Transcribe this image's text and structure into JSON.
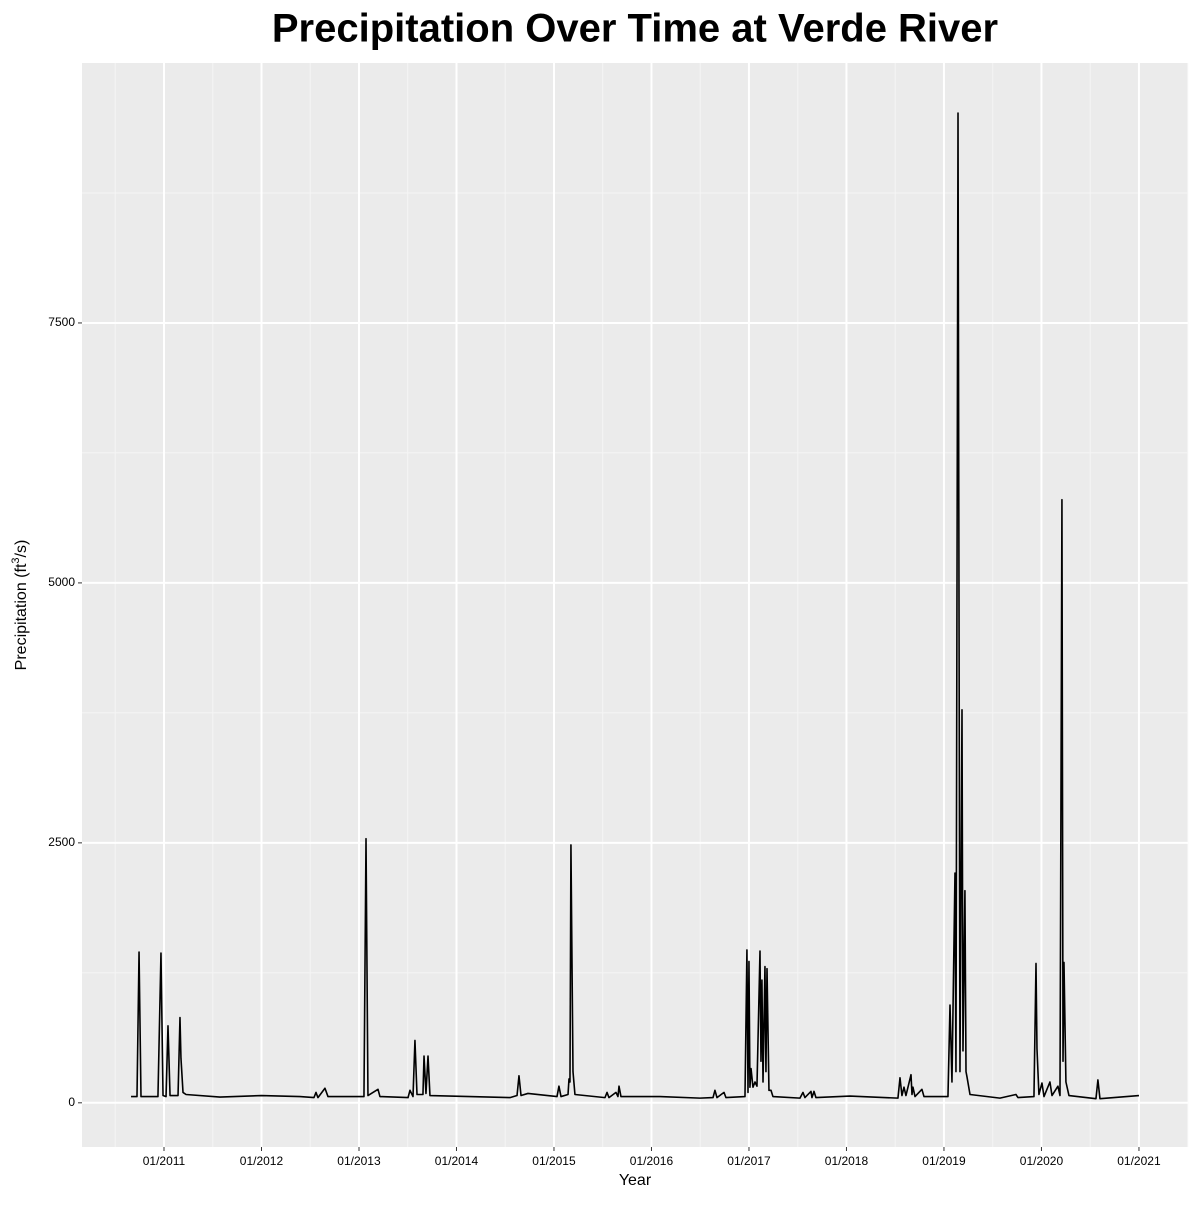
{
  "chart_data": {
    "type": "line",
    "title": "Precipitation Over Time at Verde River",
    "x_label": "Year",
    "y_label_parts": [
      "Precipitation (ft",
      "3",
      "/s)"
    ],
    "color": "#000000",
    "grid": true,
    "xlim": [
      2010.159,
      2021.503
    ],
    "ylim": [
      -425,
      10000
    ],
    "xticks": [
      {
        "value": 2011,
        "label": "01/2011"
      },
      {
        "value": 2012,
        "label": "01/2012"
      },
      {
        "value": 2013,
        "label": "01/2013"
      },
      {
        "value": 2014,
        "label": "01/2014"
      },
      {
        "value": 2015,
        "label": "01/2015"
      },
      {
        "value": 2016,
        "label": "01/2016"
      },
      {
        "value": 2017,
        "label": "01/2017"
      },
      {
        "value": 2018,
        "label": "01/2018"
      },
      {
        "value": 2019,
        "label": "01/2019"
      },
      {
        "value": 2020,
        "label": "01/2020"
      },
      {
        "value": 2021,
        "label": "01/2021"
      }
    ],
    "yticks": [
      0,
      2500,
      5000,
      7500
    ],
    "xminor": [
      2010.5,
      2011.5,
      2012.5,
      2013.5,
      2014.5,
      2015.5,
      2016.5,
      2017.5,
      2018.5,
      2019.5,
      2020.5,
      2021.5
    ],
    "yminor": [
      1250,
      3750,
      6250,
      8750
    ],
    "x": [
      2010.662,
      2010.723,
      2010.744,
      2010.764,
      2010.938,
      2010.969,
      2010.99,
      2011.021,
      2011.041,
      2011.062,
      2011.144,
      2011.164,
      2011.174,
      2011.195,
      2011.226,
      2011.574,
      2012.0,
      2012.395,
      2012.538,
      2012.559,
      2012.579,
      2012.651,
      2012.682,
      2013.051,
      2013.072,
      2013.092,
      2013.195,
      2013.215,
      2013.503,
      2013.523,
      2013.554,
      2013.574,
      2013.595,
      2013.656,
      2013.667,
      2013.687,
      2013.708,
      2013.728,
      2014.138,
      2014.549,
      2014.621,
      2014.641,
      2014.662,
      2014.733,
      2015.031,
      2015.051,
      2015.072,
      2015.144,
      2015.154,
      2015.164,
      2015.174,
      2015.195,
      2015.215,
      2015.523,
      2015.544,
      2015.564,
      2015.636,
      2015.656,
      2015.667,
      2015.687,
      2016.087,
      2016.497,
      2016.631,
      2016.651,
      2016.672,
      2016.744,
      2016.764,
      2016.959,
      2016.979,
      2016.99,
      2017.0,
      2017.01,
      2017.021,
      2017.041,
      2017.062,
      2017.082,
      2017.113,
      2017.123,
      2017.133,
      2017.144,
      2017.164,
      2017.174,
      2017.185,
      2017.205,
      2017.226,
      2017.246,
      2017.523,
      2017.554,
      2017.574,
      2017.636,
      2017.646,
      2017.667,
      2017.687,
      2018.036,
      2018.528,
      2018.549,
      2018.569,
      2018.59,
      2018.61,
      2018.662,
      2018.672,
      2018.682,
      2018.703,
      2018.774,
      2018.795,
      2019.041,
      2019.062,
      2019.082,
      2019.113,
      2019.123,
      2019.144,
      2019.164,
      2019.185,
      2019.195,
      2019.215,
      2019.226,
      2019.236,
      2019.267,
      2019.574,
      2019.738,
      2019.759,
      2019.923,
      2019.944,
      2019.954,
      2019.974,
      2020.005,
      2020.026,
      2020.087,
      2020.108,
      2020.169,
      2020.19,
      2020.21,
      2020.221,
      2020.231,
      2020.251,
      2020.282,
      2020.559,
      2020.579,
      2020.6,
      2021.0
    ],
    "values": [
      60,
      60,
      1450,
      60,
      60,
      1440,
      70,
      60,
      740,
      70,
      70,
      820,
      430,
      100,
      80,
      55,
      70,
      60,
      50,
      100,
      50,
      140,
      60,
      60,
      2540,
      70,
      130,
      60,
      50,
      120,
      60,
      600,
      80,
      80,
      450,
      90,
      450,
      70,
      60,
      50,
      70,
      260,
      70,
      90,
      60,
      160,
      60,
      80,
      230,
      200,
      2480,
      300,
      80,
      50,
      100,
      50,
      100,
      60,
      160,
      60,
      60,
      45,
      50,
      120,
      50,
      100,
      50,
      60,
      1470,
      100,
      1360,
      150,
      330,
      150,
      200,
      160,
      1460,
      400,
      1180,
      200,
      1310,
      300,
      1290,
      120,
      120,
      60,
      45,
      100,
      50,
      110,
      50,
      110,
      50,
      65,
      45,
      240,
      70,
      150,
      70,
      270,
      80,
      150,
      60,
      130,
      60,
      60,
      940,
      200,
      2210,
      300,
      9519,
      300,
      3780,
      500,
      2040,
      300,
      250,
      80,
      45,
      80,
      50,
      60,
      1340,
      520,
      80,
      190,
      60,
      200,
      70,
      160,
      70,
      5800,
      400,
      1350,
      200,
      70,
      40,
      220,
      40,
      70
    ]
  }
}
